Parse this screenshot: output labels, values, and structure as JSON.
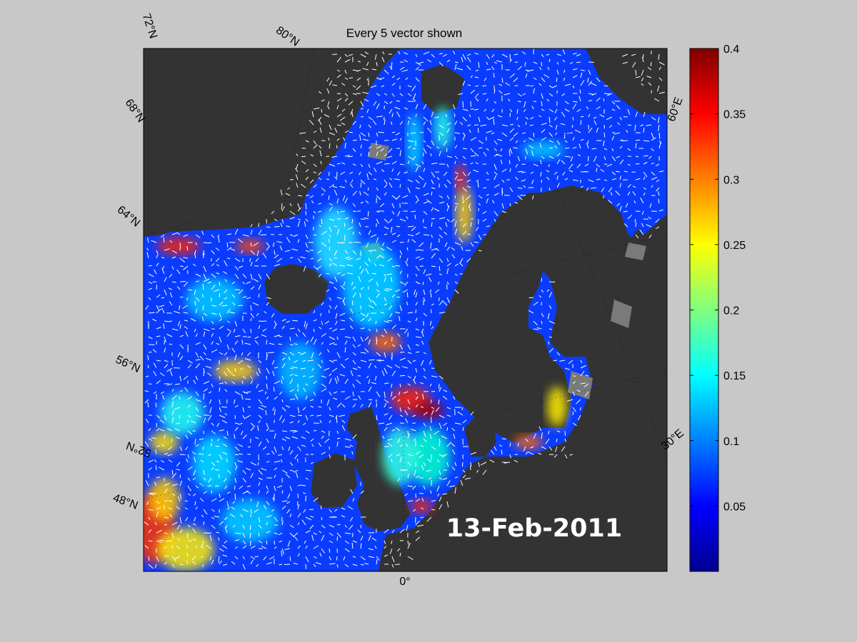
{
  "figure": {
    "title": "Every 5 vector shown",
    "date_label": "13-Feb-2011"
  },
  "map": {
    "lat_labels": [
      "72°N",
      "68°N",
      "64°N",
      "56°N",
      "52°N",
      "48°N"
    ],
    "lon_labels": [
      "80°N",
      "60°E",
      "30°E",
      "0°"
    ],
    "colors": {
      "land": "#333333",
      "sea_ice": "#7a7a7a",
      "ocean_base": "#0a3cff",
      "vectors": "#ffffff"
    }
  },
  "colorbar": {
    "colormap": "jet",
    "min": 0,
    "max": 0.4,
    "ticks": [
      "0.4",
      "0.35",
      "0.3",
      "0.25",
      "0.2",
      "0.15",
      "0.1",
      "0.05"
    ],
    "tick_values": [
      0.4,
      0.35,
      0.3,
      0.25,
      0.2,
      0.15,
      0.1,
      0.05
    ]
  }
}
